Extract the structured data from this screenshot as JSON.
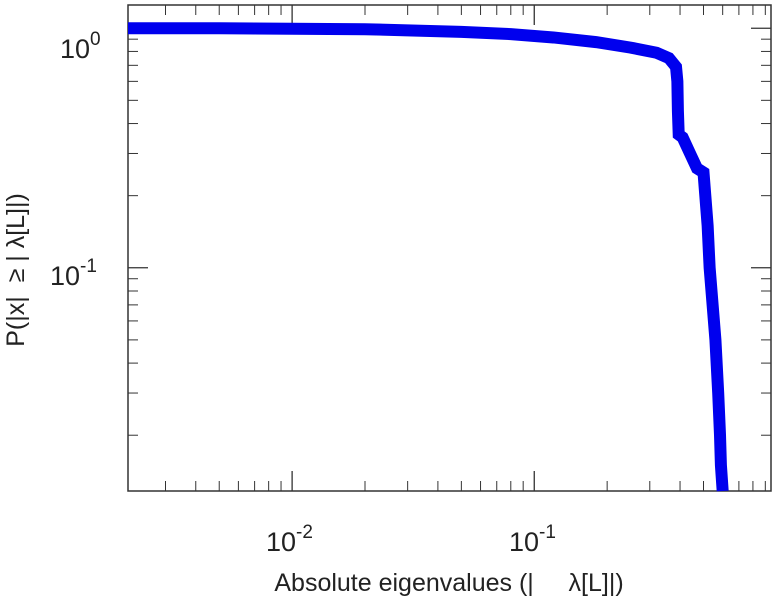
{
  "chart_data": {
    "type": "line",
    "x_scale": "log",
    "y_scale": "log",
    "xlabel": "Absolute eigenvalues (|     λ[L]|)",
    "ylabel": "P(|x|  ≥ | λ[L]|)",
    "xlim": [
      0.0021,
      0.95
    ],
    "ylim": [
      0.0117,
      1.25
    ],
    "x_ticks": [
      {
        "value": 0.01,
        "base": "10",
        "exp": "-2"
      },
      {
        "value": 0.1,
        "base": "10",
        "exp": "-1"
      }
    ],
    "y_ticks": [
      {
        "value": 1,
        "base": "10",
        "exp": "0"
      },
      {
        "value": 0.1,
        "base": "10",
        "exp": "-1"
      }
    ],
    "grid": false,
    "series": [
      {
        "color": "#0000ee",
        "x": [
          0.0021,
          0.005,
          0.01,
          0.02,
          0.03,
          0.05,
          0.08,
          0.12,
          0.18,
          0.25,
          0.32,
          0.36,
          0.385,
          0.39,
          0.392,
          0.395,
          0.41,
          0.44,
          0.47,
          0.5,
          0.52,
          0.53,
          0.56,
          0.575,
          0.585,
          0.59,
          0.6
        ],
        "y": [
          1.0,
          1.0,
          0.995,
          0.99,
          0.98,
          0.965,
          0.945,
          0.915,
          0.875,
          0.83,
          0.79,
          0.75,
          0.69,
          0.6,
          0.45,
          0.36,
          0.35,
          0.3,
          0.26,
          0.25,
          0.15,
          0.1,
          0.05,
          0.03,
          0.02,
          0.015,
          0.0117
        ]
      }
    ]
  }
}
